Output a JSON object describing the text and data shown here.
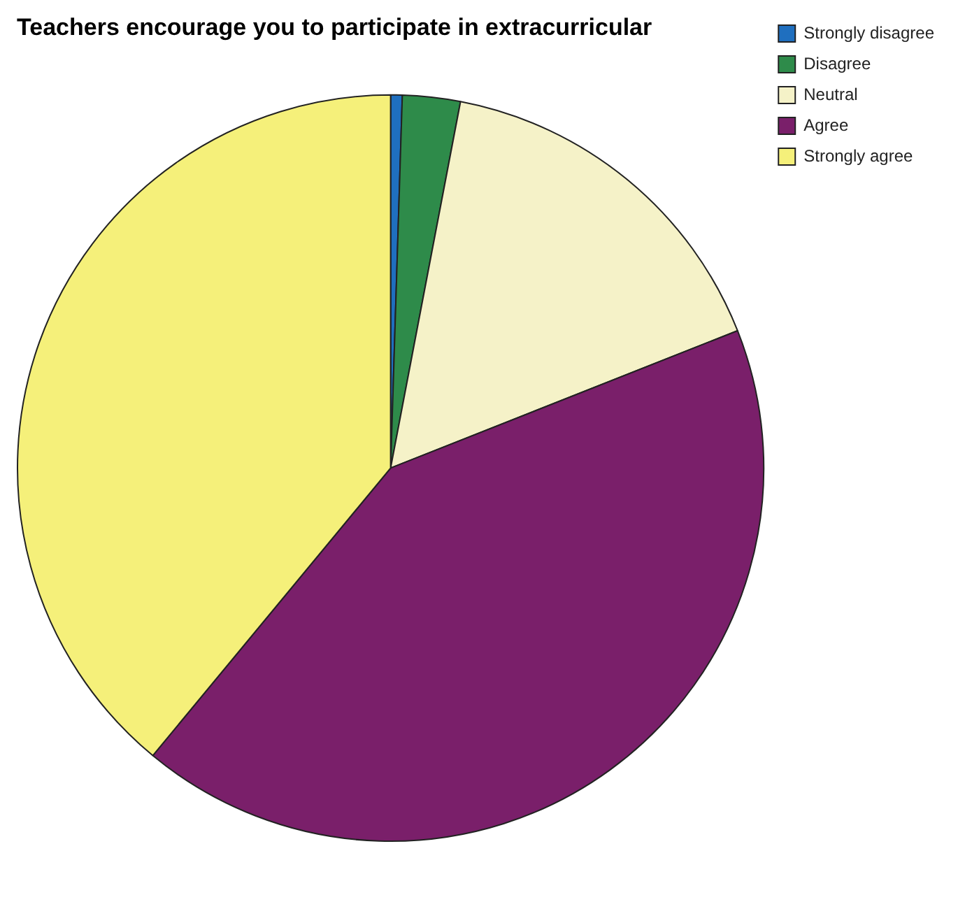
{
  "chart_data": {
    "type": "pie",
    "title": "Teachers encourage you to participate in extracurricular",
    "categories": [
      "Strongly disagree",
      "Disagree",
      "Neutral",
      "Agree",
      "Strongly agree"
    ],
    "values": [
      0.5,
      2.5,
      16,
      42,
      39
    ],
    "colors": [
      "#1f6fbf",
      "#2e8b4a",
      "#f5f2c8",
      "#7a1f6a",
      "#f5f07a"
    ],
    "legend": "top right"
  }
}
